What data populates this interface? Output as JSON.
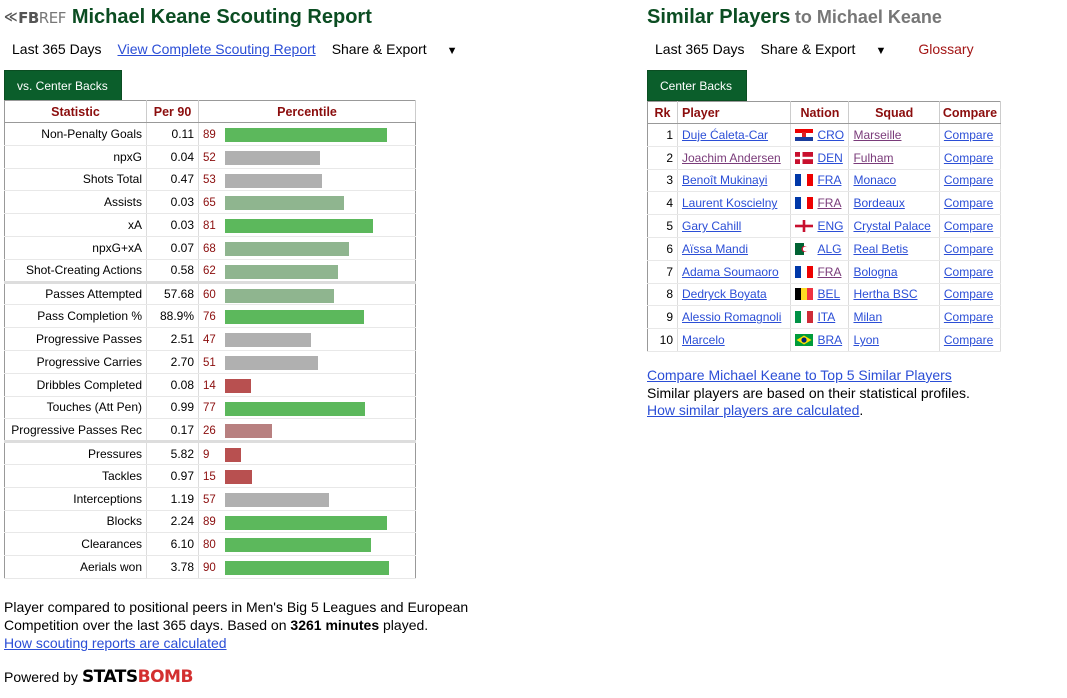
{
  "header": {
    "logo_fb": "FB",
    "logo_ref": "REF",
    "title": "Michael Keane Scouting Report"
  },
  "left_toolbar": {
    "period": "Last 365 Days",
    "view_link": "View Complete Scouting Report",
    "share": "Share & Export"
  },
  "scout_tab": "vs. Center Backs",
  "scout_table": {
    "headers": [
      "Statistic",
      "Per 90",
      "Percentile"
    ],
    "colors": {
      "high": "#5cb85c",
      "mid_high": "#8fb58f",
      "mid": "#b0b0b0",
      "low_mid": "#b88080",
      "low": "#b85050"
    },
    "groups": [
      [
        {
          "stat": "Non-Penalty Goals",
          "per90": "0.11",
          "pct": 89
        },
        {
          "stat": "npxG",
          "per90": "0.04",
          "pct": 52
        },
        {
          "stat": "Shots Total",
          "per90": "0.47",
          "pct": 53
        },
        {
          "stat": "Assists",
          "per90": "0.03",
          "pct": 65
        },
        {
          "stat": "xA",
          "per90": "0.03",
          "pct": 81
        },
        {
          "stat": "npxG+xA",
          "per90": "0.07",
          "pct": 68
        },
        {
          "stat": "Shot-Creating Actions",
          "per90": "0.58",
          "pct": 62
        }
      ],
      [
        {
          "stat": "Passes Attempted",
          "per90": "57.68",
          "pct": 60
        },
        {
          "stat": "Pass Completion %",
          "per90": "88.9%",
          "pct": 76
        },
        {
          "stat": "Progressive Passes",
          "per90": "2.51",
          "pct": 47
        },
        {
          "stat": "Progressive Carries",
          "per90": "2.70",
          "pct": 51
        },
        {
          "stat": "Dribbles Completed",
          "per90": "0.08",
          "pct": 14
        },
        {
          "stat": "Touches (Att Pen)",
          "per90": "0.99",
          "pct": 77
        },
        {
          "stat": "Progressive Passes Rec",
          "per90": "0.17",
          "pct": 26
        }
      ],
      [
        {
          "stat": "Pressures",
          "per90": "5.82",
          "pct": 9
        },
        {
          "stat": "Tackles",
          "per90": "0.97",
          "pct": 15
        },
        {
          "stat": "Interceptions",
          "per90": "1.19",
          "pct": 57
        },
        {
          "stat": "Blocks",
          "per90": "2.24",
          "pct": 89
        },
        {
          "stat": "Clearances",
          "per90": "6.10",
          "pct": 80
        },
        {
          "stat": "Aerials won",
          "per90": "3.78",
          "pct": 90
        }
      ]
    ]
  },
  "left_footer": {
    "line1": "Player compared to positional peers in Men's Big 5 Leagues and European",
    "line2_pre": "Competition over the last 365 days. Based on ",
    "minutes": "3261 minutes",
    "line2_post": " played.",
    "link": "How scouting reports are calculated",
    "powered": "Powered by",
    "stats": "STATS",
    "bomb": "BOMB"
  },
  "similar": {
    "title": "Similar Players",
    "subtitle": "to Michael Keane",
    "period": "Last 365 Days",
    "share": "Share & Export",
    "glossary": "Glossary",
    "tab": "Center Backs",
    "headers": [
      "Rk",
      "Player",
      "Nation",
      "Squad",
      "Compare"
    ],
    "rows": [
      {
        "rk": "1",
        "player": "Duje Ćaleta-Car",
        "nation": "CRO",
        "flag": "cro",
        "squad": "Marseille",
        "compare": "Compare",
        "squad_visited": true
      },
      {
        "rk": "2",
        "player": "Joachim Andersen",
        "nation": "DEN",
        "flag": "den",
        "squad": "Fulham",
        "compare": "Compare",
        "player_visited": true,
        "squad_visited": true
      },
      {
        "rk": "3",
        "player": "Benoît Mukinayi",
        "nation": "FRA",
        "flag": "fra",
        "squad": "Monaco",
        "compare": "Compare"
      },
      {
        "rk": "4",
        "player": "Laurent Koscielny",
        "nation": "FRA",
        "flag": "fra",
        "squad": "Bordeaux",
        "compare": "Compare",
        "nation_visited": true
      },
      {
        "rk": "5",
        "player": "Gary Cahill",
        "nation": "ENG",
        "flag": "eng",
        "squad": "Crystal Palace",
        "compare": "Compare"
      },
      {
        "rk": "6",
        "player": "Aïssa Mandi",
        "nation": "ALG",
        "flag": "alg",
        "squad": "Real Betis",
        "compare": "Compare"
      },
      {
        "rk": "7",
        "player": "Adama Soumaoro",
        "nation": "FRA",
        "flag": "fra",
        "squad": "Bologna",
        "compare": "Compare",
        "nation_visited": true
      },
      {
        "rk": "8",
        "player": "Dedryck Boyata",
        "nation": "BEL",
        "flag": "bel",
        "squad": "Hertha BSC",
        "compare": "Compare"
      },
      {
        "rk": "9",
        "player": "Alessio Romagnoli",
        "nation": "ITA",
        "flag": "ita",
        "squad": "Milan",
        "compare": "Compare"
      },
      {
        "rk": "10",
        "player": "Marcelo",
        "nation": "BRA",
        "flag": "bra",
        "squad": "Lyon",
        "compare": "Compare"
      }
    ],
    "footer_link": "Compare Michael Keane to Top 5 Similar Players",
    "footer_text": "Similar players are based on their statistical profiles.",
    "footer_link2": "How similar players are calculated"
  }
}
